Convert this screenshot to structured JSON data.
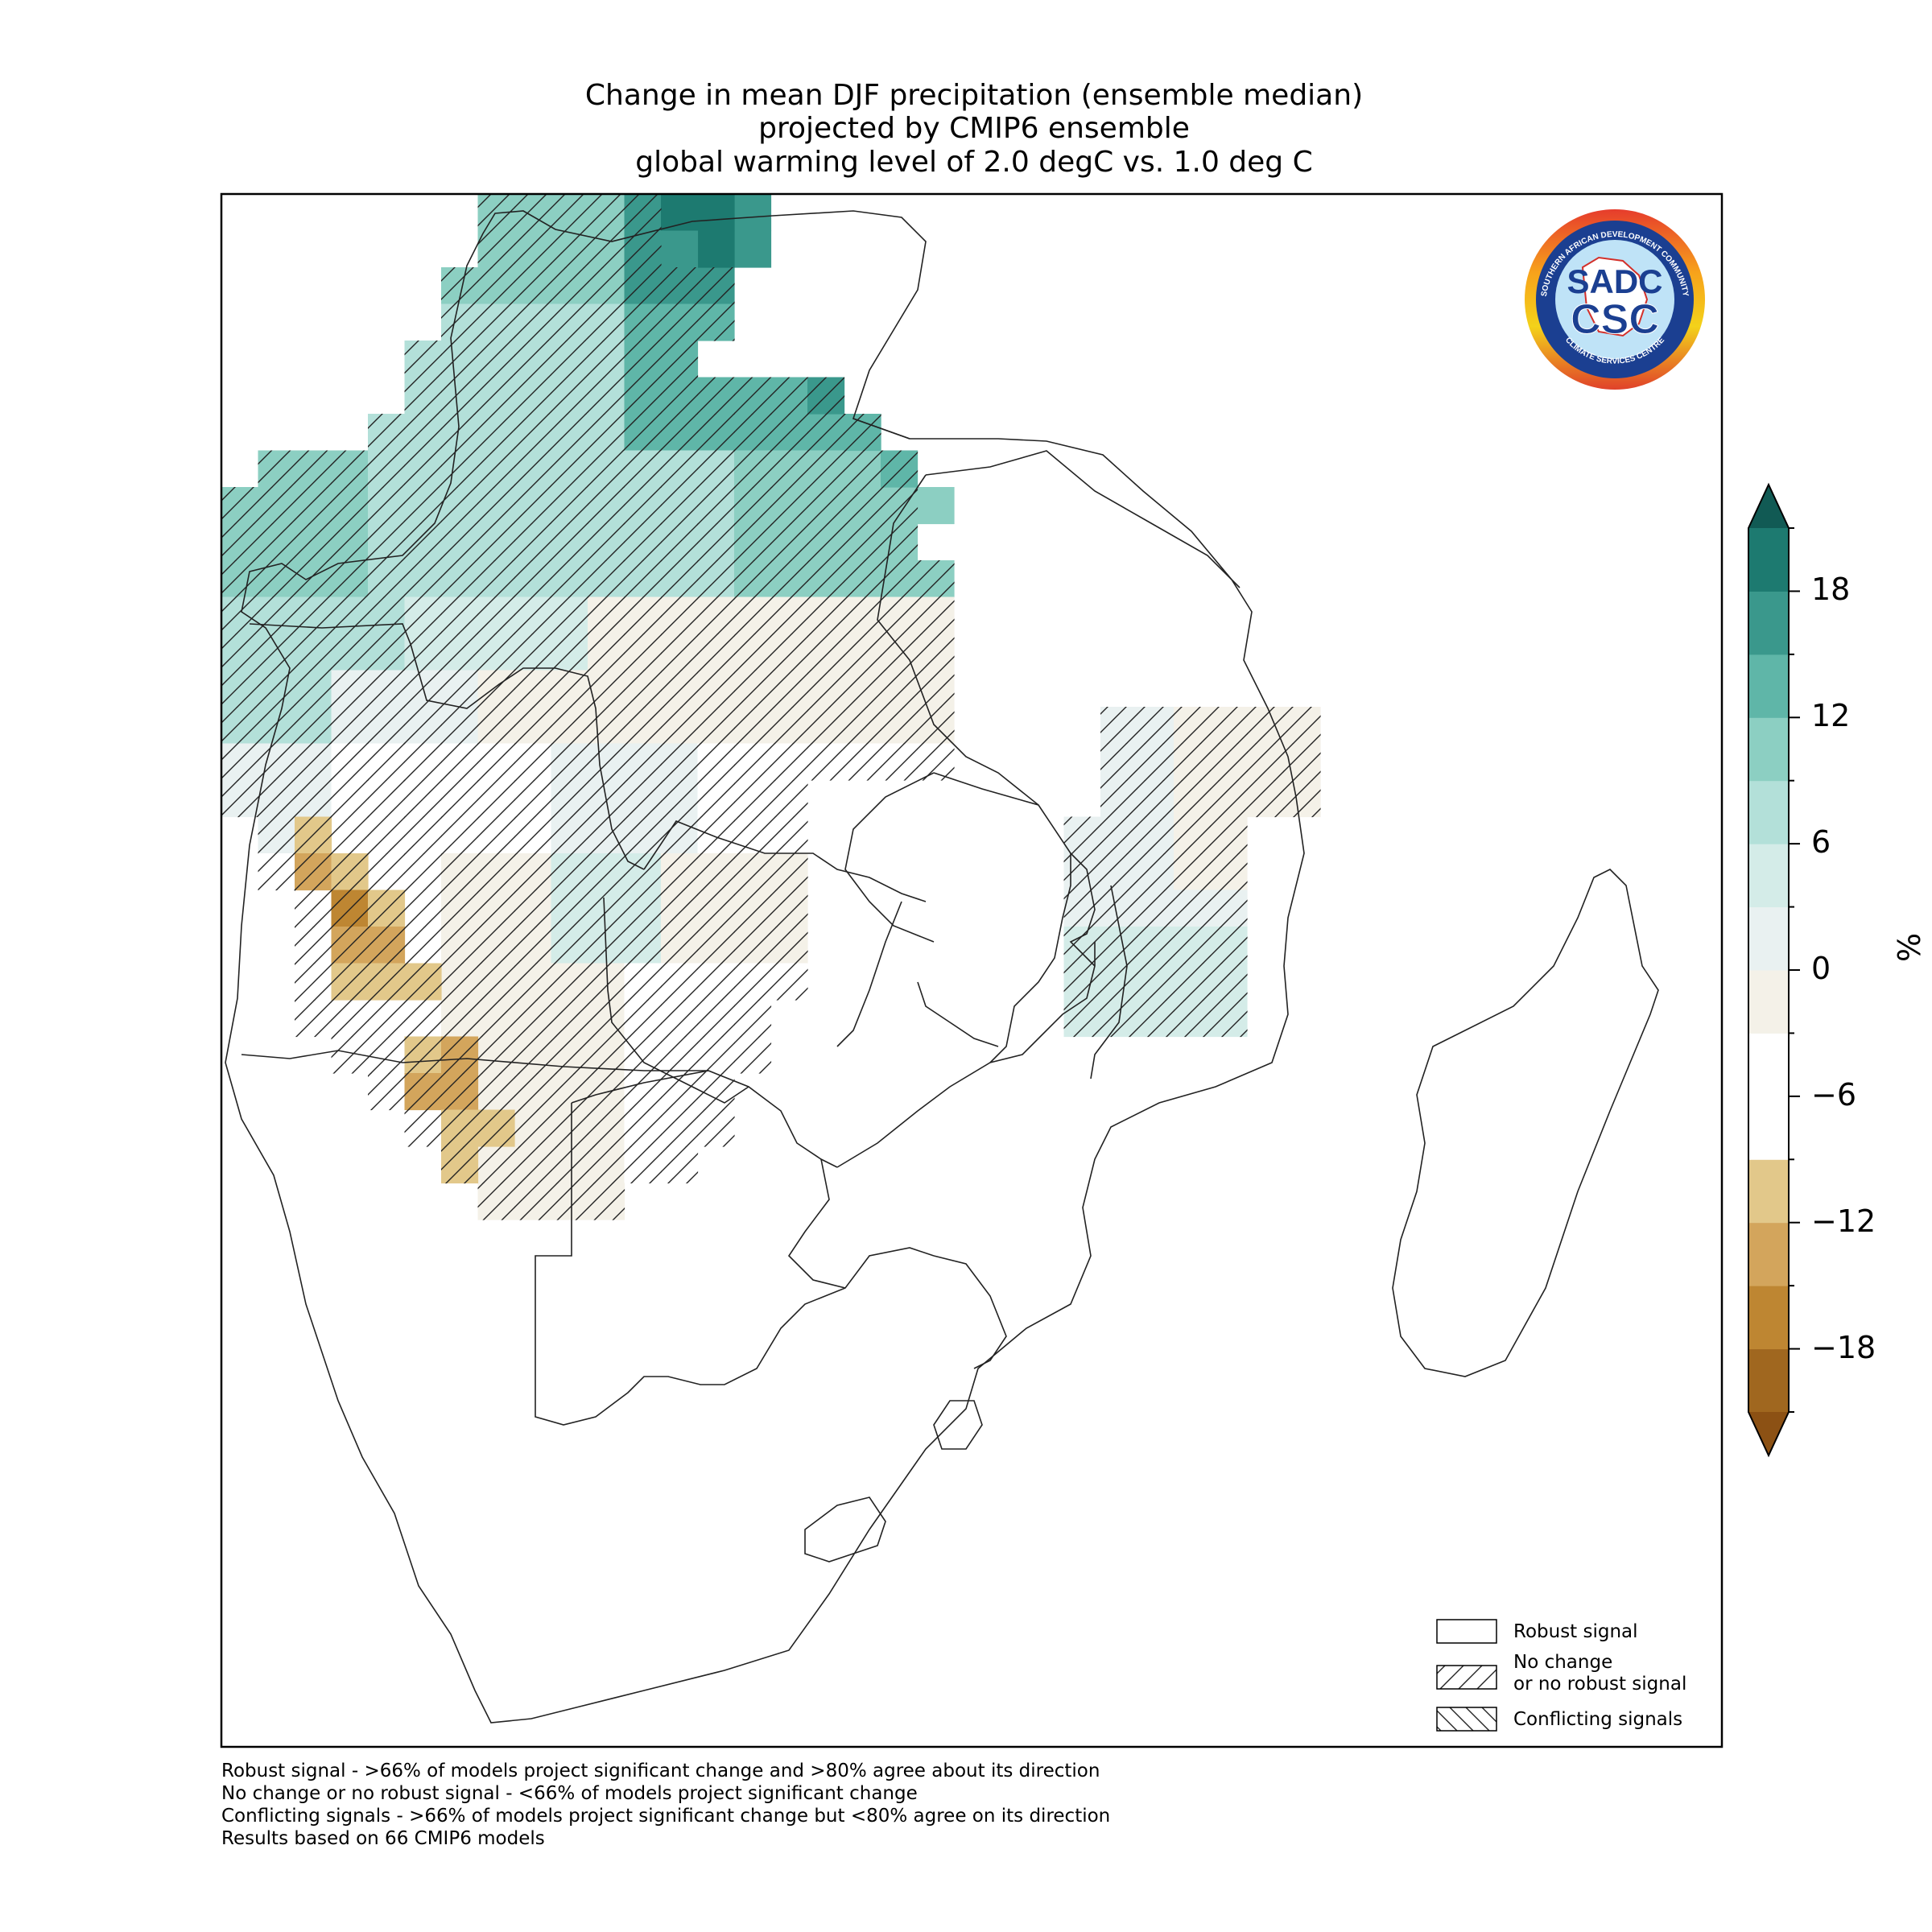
{
  "title": {
    "line1": "Change in mean DJF precipitation (ensemble median)",
    "line2": "projected by CMIP6 ensemble",
    "line3": "global warming level of 2.0 degC vs. 1.0 deg C"
  },
  "logo": {
    "text_top": "SOUTHERN AFRICAN DEVELOPMENT COMMUNITY",
    "text_bottom": "CLIMATE SERVICES CENTRE",
    "mark_top": "SADC",
    "mark_bottom": "CSC"
  },
  "colorbar": {
    "unit": "%",
    "ticks": [
      "18",
      "12",
      "6",
      "0",
      "−6",
      "−12",
      "−18"
    ],
    "levels": [
      -21,
      -18,
      -15,
      -12,
      -9,
      -6,
      -3,
      0,
      3,
      6,
      9,
      12,
      15,
      18,
      21
    ],
    "colors": [
      "#a0671f",
      "#be8632",
      "#d3a55c",
      "#e2c88a",
      "#ffffff",
      "#ffffff",
      "#f4f1e8",
      "#e9f1f1",
      "#d4ece8",
      "#b3e0d9",
      "#8ccfc2",
      "#5fb6a8",
      "#3a988c",
      "#1d7a70"
    ],
    "extend_low": "#8c5114",
    "extend_high": "#115a54"
  },
  "legend": {
    "robust": "Robust signal",
    "no_change_1": "No change",
    "no_change_2": "or no robust signal",
    "conflicting": "Conflicting signals"
  },
  "footnotes": {
    "l1": "Robust signal - >66% of models project significant change and >80% agree about its direction",
    "l2": "No change or no robust signal - <66% of models project significant change",
    "l3": "Conflicting signals - >66% of models project significant change but <80% agree on its direction",
    "l4": "Results based on 66 CMIP6 models"
  }
}
